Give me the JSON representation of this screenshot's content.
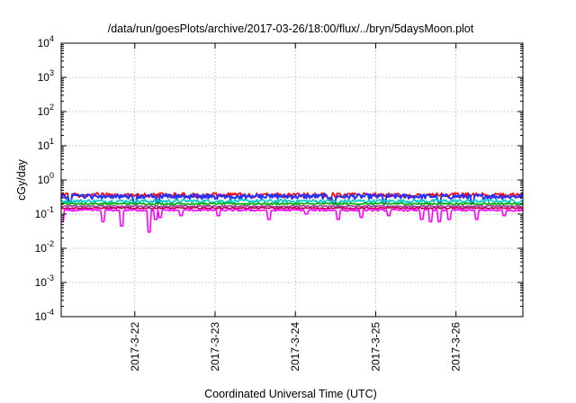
{
  "chart_data": {
    "type": "line",
    "title": "/data/run/goesPlots/archive/2017-03-26/18:00/flux/../bryn/5daysMoon.plot",
    "xlabel": "Coordinated Universal Time (UTC)",
    "ylabel": "cGy/day",
    "yscale": "log",
    "ylim": [
      0.0001,
      10000
    ],
    "xlim": [
      "2017-03-21T02:00",
      "2017-03-26T20:00"
    ],
    "xticks": [
      {
        "label": "2017-3-22",
        "value": "2017-03-22T00:00"
      },
      {
        "label": "2017-3-23",
        "value": "2017-03-23T00:00"
      },
      {
        "label": "2017-3-24",
        "value": "2017-03-24T00:00"
      },
      {
        "label": "2017-3-25",
        "value": "2017-03-25T00:00"
      },
      {
        "label": "2017-3-26",
        "value": "2017-03-26T00:00"
      }
    ],
    "yticks": [
      {
        "mantissa": "10",
        "exp": "-4",
        "value": 0.0001
      },
      {
        "mantissa": "10",
        "exp": "-3",
        "value": 0.001
      },
      {
        "mantissa": "10",
        "exp": "-2",
        "value": 0.01
      },
      {
        "mantissa": "10",
        "exp": "-1",
        "value": 0.1
      },
      {
        "mantissa": "10",
        "exp": "0",
        "value": 1
      },
      {
        "mantissa": "10",
        "exp": "1",
        "value": 10
      },
      {
        "mantissa": "10",
        "exp": "2",
        "value": 100
      },
      {
        "mantissa": "10",
        "exp": "3",
        "value": 1000
      },
      {
        "mantissa": "10",
        "exp": "4",
        "value": 10000
      }
    ],
    "grid": true,
    "legend": "none",
    "series": [
      {
        "color": "#ff0000",
        "base": 0.36,
        "jitter": 0.1,
        "dips": [
          [
            0.02,
            0.24
          ],
          [
            0.58,
            0.26
          ]
        ]
      },
      {
        "color": "#2233ff",
        "base": 0.33,
        "jitter": 0.09,
        "dips": [
          [
            0.02,
            0.22
          ],
          [
            0.16,
            0.2
          ],
          [
            0.21,
            0.22
          ],
          [
            0.59,
            0.2
          ],
          [
            0.7,
            0.2
          ],
          [
            0.82,
            0.22
          ],
          [
            0.89,
            0.21
          ]
        ]
      },
      {
        "color": "#00c8c8",
        "base": 0.24,
        "jitter": 0.05,
        "dips": [
          [
            0.6,
            0.16
          ]
        ]
      },
      {
        "color": "#00b000",
        "base": 0.2,
        "jitter": 0.02,
        "dips": []
      },
      {
        "color": "#a040a0",
        "base": 0.17,
        "jitter": 0.015,
        "dips": []
      },
      {
        "color": "#c00050",
        "base": 0.15,
        "jitter": 0.012,
        "dips": []
      },
      {
        "color": "#ff00ff",
        "base": 0.13,
        "jitter": 0.015,
        "dips": [
          [
            0.003,
            0.06
          ],
          [
            0.09,
            0.06
          ],
          [
            0.13,
            0.045
          ],
          [
            0.19,
            0.03
          ],
          [
            0.205,
            0.07
          ],
          [
            0.215,
            0.08
          ],
          [
            0.26,
            0.09
          ],
          [
            0.34,
            0.09
          ],
          [
            0.45,
            0.07
          ],
          [
            0.53,
            0.1
          ],
          [
            0.6,
            0.07
          ],
          [
            0.65,
            0.08
          ],
          [
            0.71,
            0.09
          ],
          [
            0.78,
            0.07
          ],
          [
            0.8,
            0.06
          ],
          [
            0.82,
            0.06
          ],
          [
            0.84,
            0.07
          ],
          [
            0.9,
            0.07
          ],
          [
            0.96,
            0.09
          ]
        ]
      }
    ]
  }
}
